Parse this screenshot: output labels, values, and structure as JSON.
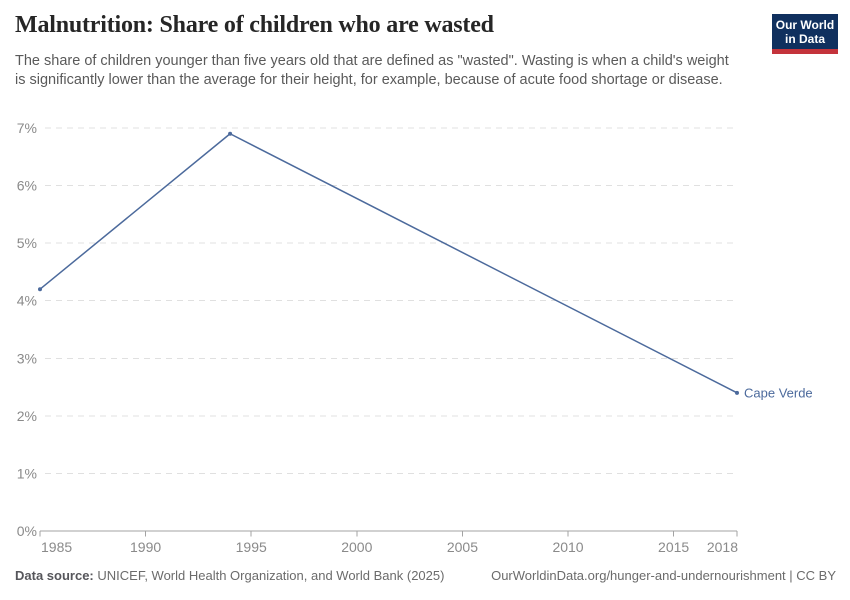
{
  "logo": {
    "line1": "Our World",
    "line2": "in Data"
  },
  "chart_data": {
    "type": "line",
    "title": "Malnutrition: Share of children who are wasted",
    "subtitle": "The share of children younger than five years old that are defined as \"wasted\". Wasting is when a child's weight is significantly lower than the average for their height, for example, because of acute food shortage or disease.",
    "series": [
      {
        "name": "Cape Verde",
        "color": "#4c6a9c",
        "x": [
          1985,
          1994,
          2018
        ],
        "values": [
          4.2,
          6.9,
          2.4
        ]
      }
    ],
    "xlim": [
      1985,
      2018
    ],
    "ylim": [
      0,
      7
    ],
    "xticks": [
      1985,
      1990,
      1995,
      2000,
      2005,
      2010,
      2015,
      2018
    ],
    "yticks": [
      0,
      1,
      2,
      3,
      4,
      5,
      6,
      7
    ],
    "ytick_suffix": "%",
    "grid": "horizontal-dashed",
    "legend": "entity-label-at-line-end"
  },
  "footer": {
    "datasource_label": "Data source:",
    "datasource_text": "UNICEF, World Health Organization, and World Bank (2025)",
    "link_text": "OurWorldinData.org/hunger-and-undernourishment | CC BY"
  },
  "colors": {
    "line": "#4c6a9c",
    "grid": "#e0e0e0",
    "axis": "#a3a3a3",
    "tick_label": "#8a8a8a",
    "title": "#262626",
    "subtitle": "#5a5a5a",
    "footer": "#6b6b6b",
    "logo_bg": "#10305e",
    "logo_bar": "#c4333b"
  }
}
